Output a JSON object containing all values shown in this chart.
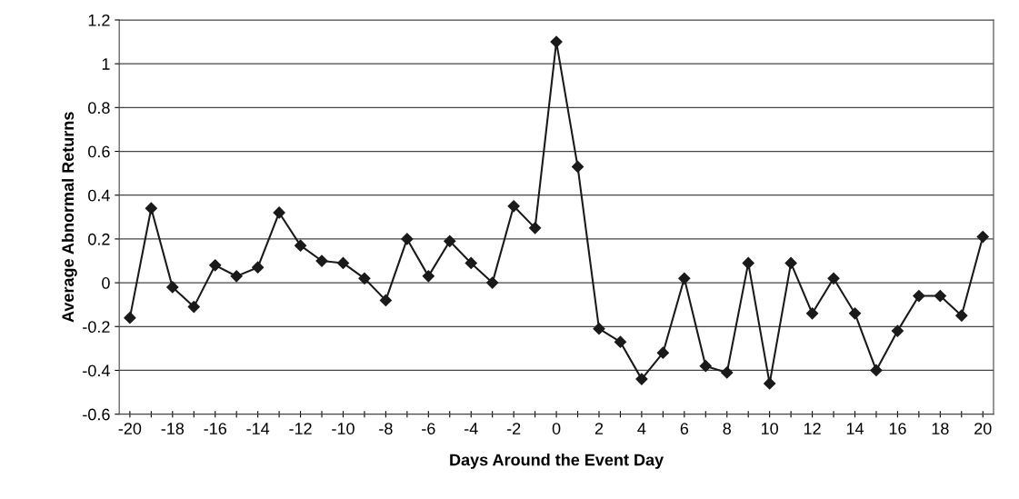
{
  "chart_data": {
    "type": "line",
    "xlabel": "Days Around the Event Day",
    "ylabel": "Average Abnormal Returns",
    "x": [
      -20,
      -19,
      -18,
      -17,
      -16,
      -15,
      -14,
      -13,
      -12,
      -11,
      -10,
      -9,
      -8,
      -7,
      -6,
      -5,
      -4,
      -3,
      -2,
      -1,
      0,
      1,
      2,
      3,
      4,
      5,
      6,
      7,
      8,
      9,
      10,
      11,
      12,
      13,
      14,
      15,
      16,
      17,
      18,
      19,
      20
    ],
    "series": [
      {
        "color": "#1a1a1a",
        "values": [
          -0.16,
          0.34,
          -0.02,
          -0.11,
          0.08,
          0.03,
          0.07,
          0.32,
          0.17,
          0.1,
          0.09,
          0.02,
          -0.08,
          0.2,
          0.03,
          0.19,
          0.09,
          0.0,
          0.35,
          0.25,
          1.1,
          0.53,
          -0.21,
          -0.27,
          -0.44,
          -0.32,
          0.02,
          -0.38,
          -0.41,
          0.09,
          -0.46,
          0.09,
          -0.14,
          0.02,
          -0.14,
          -0.4,
          -0.22,
          -0.06,
          -0.06,
          -0.15,
          0.21
        ]
      }
    ],
    "xlim": [
      -20.5,
      20.5
    ],
    "xticks": [
      -20,
      {
        "value": -19,
        "label": null
      },
      -18,
      {
        "value": -17,
        "label": null
      },
      -16,
      {
        "value": -15,
        "label": null
      },
      -14,
      {
        "value": -13,
        "label": null
      },
      -12,
      {
        "value": -11,
        "label": null
      },
      -10,
      {
        "value": -9,
        "label": null
      },
      -8,
      {
        "value": -7,
        "label": null
      },
      -6,
      {
        "value": -5,
        "label": null
      },
      -4,
      {
        "value": -3,
        "label": null
      },
      -2,
      {
        "value": -1,
        "label": null
      },
      0,
      {
        "value": 1,
        "label": null
      },
      2,
      {
        "value": 3,
        "label": null
      },
      4,
      {
        "value": 5,
        "label": null
      },
      6,
      {
        "value": 7,
        "label": null
      },
      8,
      {
        "value": 9,
        "label": null
      },
      10,
      {
        "value": 11,
        "label": null
      },
      12,
      {
        "value": 13,
        "label": null
      },
      14,
      {
        "value": 15,
        "label": null
      },
      16,
      {
        "value": 17,
        "label": null
      },
      18,
      {
        "value": 19,
        "label": null
      },
      20
    ],
    "ylim": [
      -0.6,
      1.2
    ],
    "yticks": [
      -0.6,
      -0.4,
      -0.2,
      0,
      0.2,
      0.4,
      0.6,
      0.8,
      1,
      1.2
    ],
    "grid": "y",
    "marker": "diamond",
    "line_style": "solid",
    "legend": false
  }
}
